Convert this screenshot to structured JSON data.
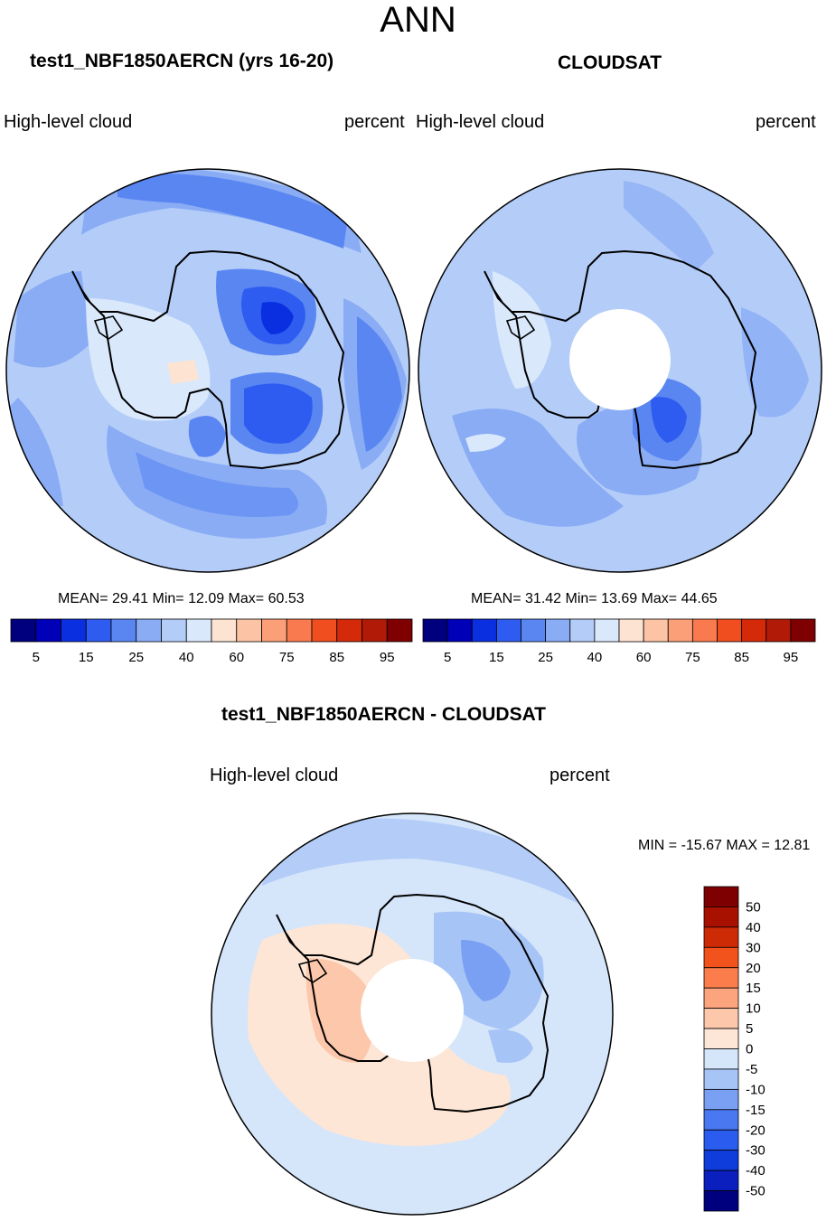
{
  "page": {
    "main_title": "ANN"
  },
  "palettes": {
    "abs": [
      "#00007f",
      "#0000b8",
      "#0a2fe0",
      "#2e5cf0",
      "#5a86f2",
      "#8aacf5",
      "#b4cdf8",
      "#d9e8fb",
      "#fde3d2",
      "#fcc3a4",
      "#fb9f78",
      "#f97a4e",
      "#f04e1e",
      "#d42a0a",
      "#b01a06",
      "#7f0000"
    ],
    "diff": [
      "#00007f",
      "#0a1fbd",
      "#0e3ddb",
      "#2a5cf0",
      "#4a78f0",
      "#7aa0f4",
      "#a7c4f7",
      "#d5e5fa",
      "#fde6d6",
      "#fcc7aa",
      "#fca47d",
      "#fb7d4c",
      "#f2521c",
      "#cd2a06",
      "#a81000",
      "#7f0000"
    ]
  },
  "chart_data": [
    {
      "type": "polar-contour",
      "title": "test1_NBF1850AERCN (yrs 16-20)",
      "variable": "High-level cloud",
      "units": "percent",
      "mean": "29.41",
      "min": "12.09",
      "max": "60.53",
      "stats_text": "MEAN=  29.41  Min=  12.09  Max=  60.53",
      "colorbar_orientation": "horizontal",
      "colorbar_labels": [
        "5",
        "15",
        "25",
        "40",
        "60",
        "75",
        "85",
        "95"
      ],
      "has_pole_gap": false
    },
    {
      "type": "polar-contour",
      "title": "CLOUDSAT",
      "variable": "High-level cloud",
      "units": "percent",
      "mean": "31.42",
      "min": "13.69",
      "max": "44.65",
      "stats_text": "MEAN=  31.42  Min=  13.69  Max=  44.65",
      "colorbar_orientation": "horizontal",
      "colorbar_labels": [
        "5",
        "15",
        "25",
        "40",
        "60",
        "75",
        "85",
        "95"
      ],
      "has_pole_gap": true
    },
    {
      "type": "polar-contour",
      "title": "test1_NBF1850AERCN - CLOUDSAT",
      "variable": "High-level cloud",
      "units": "percent",
      "min": "-15.67",
      "max": "12.81",
      "stats_text": "MIN = -15.67 MAX =  12.81",
      "colorbar_orientation": "vertical",
      "colorbar_labels": [
        "50",
        "40",
        "30",
        "20",
        "15",
        "10",
        "5",
        "0",
        "-5",
        "-10",
        "-15",
        "-20",
        "-30",
        "-40",
        "-50"
      ],
      "has_pole_gap": true
    }
  ]
}
